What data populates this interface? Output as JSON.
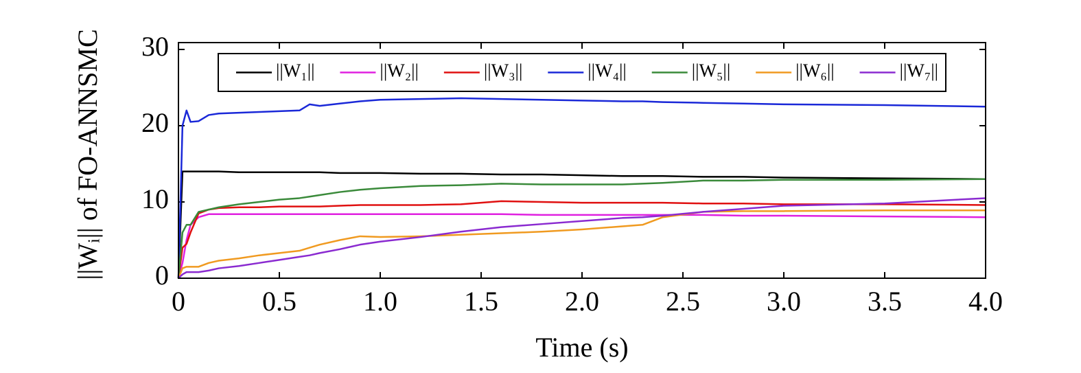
{
  "chart_data": {
    "type": "line",
    "x_label": "Time (s)",
    "y_label": "||Wᵢ|| of FO-ANNSMC",
    "x": [
      0,
      0.02,
      0.04,
      0.06,
      0.1,
      0.15,
      0.2,
      0.3,
      0.4,
      0.5,
      0.6,
      0.65,
      0.7,
      0.8,
      0.9,
      1.0,
      1.2,
      1.4,
      1.6,
      1.8,
      2.0,
      2.2,
      2.3,
      2.4,
      2.6,
      2.8,
      3.0,
      3.5,
      4.0
    ],
    "series": [
      {
        "name": "||W₁||",
        "color": "#000000",
        "values": [
          0,
          14,
          14,
          14,
          14,
          14,
          14,
          13.9,
          13.9,
          13.9,
          13.9,
          13.9,
          13.9,
          13.8,
          13.8,
          13.8,
          13.7,
          13.7,
          13.6,
          13.6,
          13.5,
          13.4,
          13.4,
          13.4,
          13.3,
          13.3,
          13.2,
          13.1,
          13.0
        ]
      },
      {
        "name": "||W₂||",
        "color": "#e020e0",
        "values": [
          0,
          2,
          5,
          7,
          8,
          8.4,
          8.4,
          8.4,
          8.4,
          8.4,
          8.4,
          8.4,
          8.4,
          8.4,
          8.4,
          8.4,
          8.4,
          8.4,
          8.4,
          8.3,
          8.3,
          8.3,
          8.3,
          8.3,
          8.3,
          8.2,
          8.2,
          8.1,
          8.0
        ]
      },
      {
        "name": "||W₃||",
        "color": "#e01010",
        "values": [
          0,
          4,
          4.5,
          6,
          8.5,
          9,
          9.2,
          9.3,
          9.3,
          9.4,
          9.4,
          9.4,
          9.4,
          9.5,
          9.6,
          9.6,
          9.6,
          9.7,
          10.1,
          10.0,
          9.9,
          9.9,
          9.9,
          9.9,
          9.8,
          9.8,
          9.7,
          9.7,
          9.6
        ]
      },
      {
        "name": "||W₄||",
        "color": "#1a28d8",
        "values": [
          0,
          20,
          22,
          20.5,
          20.6,
          21.4,
          21.6,
          21.7,
          21.8,
          21.9,
          22.0,
          22.8,
          22.6,
          22.9,
          23.2,
          23.4,
          23.5,
          23.6,
          23.5,
          23.4,
          23.3,
          23.2,
          23.2,
          23.1,
          23.0,
          22.9,
          22.8,
          22.7,
          22.5
        ]
      },
      {
        "name": "||W₅||",
        "color": "#3a8a3a",
        "values": [
          0,
          6,
          7,
          7,
          8.7,
          9,
          9.3,
          9.7,
          10.0,
          10.3,
          10.5,
          10.7,
          10.9,
          11.3,
          11.6,
          11.8,
          12.1,
          12.2,
          12.4,
          12.3,
          12.3,
          12.3,
          12.4,
          12.5,
          12.8,
          12.8,
          12.9,
          12.9,
          13.0
        ]
      },
      {
        "name": "||W₆||",
        "color": "#f09a20",
        "values": [
          0,
          1.3,
          1.5,
          1.5,
          1.5,
          2.0,
          2.3,
          2.6,
          3.0,
          3.3,
          3.6,
          4.0,
          4.4,
          5.0,
          5.5,
          5.4,
          5.5,
          5.7,
          5.9,
          6.1,
          6.4,
          6.8,
          7.0,
          8.0,
          8.7,
          8.8,
          8.8,
          8.9,
          8.9
        ]
      },
      {
        "name": "||W₇||",
        "color": "#8a2ad0",
        "values": [
          0,
          0.5,
          0.8,
          0.8,
          0.8,
          1.0,
          1.3,
          1.6,
          2.0,
          2.4,
          2.8,
          3.0,
          3.3,
          3.8,
          4.4,
          4.8,
          5.4,
          6.1,
          6.7,
          7.1,
          7.5,
          7.9,
          8.0,
          8.2,
          8.7,
          9.1,
          9.5,
          9.8,
          10.5
        ]
      }
    ],
    "xlim": [
      0,
      4
    ],
    "ylim": [
      0,
      30.9
    ],
    "xticks": [
      0,
      0.5,
      {
        "value": 1,
        "label": "1.0"
      },
      1.5,
      {
        "value": 2,
        "label": "2.0"
      },
      2.5,
      {
        "value": 3,
        "label": "3.0"
      },
      3.5,
      {
        "value": 4,
        "label": "4.0"
      }
    ],
    "yticks": [
      0,
      10,
      20,
      30
    ],
    "legend": "top"
  }
}
